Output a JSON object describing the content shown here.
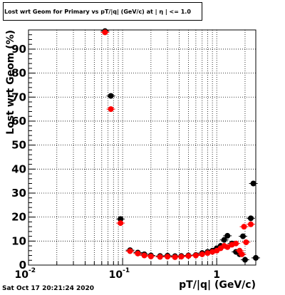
{
  "window": {
    "title": "Lost wrt Geom for Primary vs pT/|q| (GeV/c) at | η | <= 1.0",
    "timestamp": "Sat Oct 17 20:21:24 2020"
  },
  "chart_data": {
    "type": "scatter",
    "title": "Lost wrt Geom for Primary vs pT/|q| (GeV/c) at | η | <= 1.0",
    "xlabel": "pT/|q| (GeV/c)",
    "ylabel": "Lost wrt Geom (%)",
    "x_scale": "log",
    "xlim": [
      0.01,
      2.6
    ],
    "ylim": [
      0,
      98
    ],
    "x_ticks": [
      {
        "value": 0.01,
        "label": "10",
        "exp": "-2"
      },
      {
        "value": 0.1,
        "label": "10",
        "exp": "-1"
      },
      {
        "value": 1,
        "label": "1",
        "exp": ""
      }
    ],
    "y_ticks": [
      0,
      10,
      20,
      30,
      40,
      50,
      60,
      70,
      80,
      90
    ],
    "grid": true,
    "colors": {
      "series_black": "#000000",
      "series_red": "#ff0000"
    },
    "series": [
      {
        "color": "#000000",
        "points": [
          {
            "x": 0.065,
            "y": 97.5
          },
          {
            "x": 0.075,
            "y": 70.5
          },
          {
            "x": 0.095,
            "y": 19.2
          },
          {
            "x": 0.12,
            "y": 6.2
          },
          {
            "x": 0.145,
            "y": 5.2
          },
          {
            "x": 0.17,
            "y": 4.5
          },
          {
            "x": 0.2,
            "y": 4.0
          },
          {
            "x": 0.25,
            "y": 3.8
          },
          {
            "x": 0.3,
            "y": 3.9
          },
          {
            "x": 0.36,
            "y": 3.7
          },
          {
            "x": 0.42,
            "y": 3.8
          },
          {
            "x": 0.5,
            "y": 4.0
          },
          {
            "x": 0.6,
            "y": 4.2
          },
          {
            "x": 0.7,
            "y": 5.0
          },
          {
            "x": 0.8,
            "y": 5.5
          },
          {
            "x": 0.9,
            "y": 6.0
          },
          {
            "x": 1.0,
            "y": 7.0
          },
          {
            "x": 1.1,
            "y": 8.0
          },
          {
            "x": 1.2,
            "y": 10.5
          },
          {
            "x": 1.3,
            "y": 12.2
          },
          {
            "x": 1.45,
            "y": 9.0
          },
          {
            "x": 1.6,
            "y": 5.5
          },
          {
            "x": 1.75,
            "y": 4.5
          },
          {
            "x": 1.9,
            "y": 12.0
          },
          {
            "x": 2.0,
            "y": 2.2
          },
          {
            "x": 2.3,
            "y": 19.5
          },
          {
            "x": 2.45,
            "y": 34.0
          },
          {
            "x": 2.6,
            "y": 3.0
          }
        ]
      },
      {
        "color": "#ff0000",
        "points": [
          {
            "x": 0.065,
            "y": 97.0
          },
          {
            "x": 0.075,
            "y": 65.0
          },
          {
            "x": 0.095,
            "y": 17.5
          },
          {
            "x": 0.12,
            "y": 5.8
          },
          {
            "x": 0.145,
            "y": 4.8
          },
          {
            "x": 0.17,
            "y": 4.0
          },
          {
            "x": 0.2,
            "y": 3.6
          },
          {
            "x": 0.25,
            "y": 3.4
          },
          {
            "x": 0.3,
            "y": 3.5
          },
          {
            "x": 0.36,
            "y": 3.3
          },
          {
            "x": 0.42,
            "y": 3.5
          },
          {
            "x": 0.5,
            "y": 3.8
          },
          {
            "x": 0.6,
            "y": 4.0
          },
          {
            "x": 0.7,
            "y": 4.5
          },
          {
            "x": 0.8,
            "y": 5.0
          },
          {
            "x": 0.9,
            "y": 5.5
          },
          {
            "x": 1.0,
            "y": 6.0
          },
          {
            "x": 1.1,
            "y": 7.0
          },
          {
            "x": 1.2,
            "y": 8.0
          },
          {
            "x": 1.3,
            "y": 7.5
          },
          {
            "x": 1.45,
            "y": 8.5
          },
          {
            "x": 1.6,
            "y": 9.0
          },
          {
            "x": 1.75,
            "y": 6.0
          },
          {
            "x": 1.85,
            "y": 4.5
          },
          {
            "x": 1.95,
            "y": 16.0
          },
          {
            "x": 2.05,
            "y": 9.5
          },
          {
            "x": 2.3,
            "y": 17.0
          }
        ]
      }
    ]
  }
}
